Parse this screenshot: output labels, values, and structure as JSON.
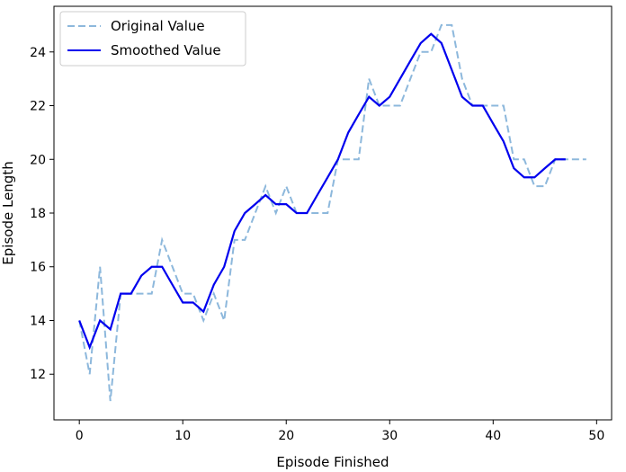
{
  "chart_data": {
    "type": "line",
    "title": "",
    "xlabel": "Episode Finished",
    "ylabel": "Episode Length",
    "xlim": [
      -2.45,
      51.45
    ],
    "ylim": [
      10.3,
      25.7
    ],
    "xticks": [
      0,
      10,
      20,
      30,
      40,
      50
    ],
    "yticks": [
      12,
      14,
      16,
      18,
      20,
      22,
      24
    ],
    "grid": false,
    "legend_position": "top-left",
    "series": [
      {
        "name": "Original Value",
        "style": "dashed",
        "color": "#8db8dc",
        "x": [
          0,
          1,
          2,
          3,
          4,
          5,
          6,
          7,
          8,
          9,
          10,
          11,
          12,
          13,
          14,
          15,
          16,
          17,
          18,
          19,
          20,
          21,
          22,
          23,
          24,
          25,
          26,
          27,
          28,
          29,
          30,
          31,
          32,
          33,
          34,
          35,
          36,
          37,
          38,
          39,
          40,
          41,
          42,
          43,
          44,
          45,
          46,
          47,
          48,
          49
        ],
        "y": [
          14,
          12,
          16,
          11,
          15,
          15,
          15,
          15,
          17,
          16,
          15,
          15,
          14,
          15,
          14,
          17,
          17,
          18,
          19,
          18,
          19,
          18,
          18,
          18,
          18,
          20,
          20,
          20,
          23,
          22,
          22,
          22,
          23,
          24,
          24,
          25,
          25,
          23,
          22,
          22,
          22,
          22,
          20,
          20,
          19,
          19,
          20,
          20,
          20,
          20
        ]
      },
      {
        "name": "Smoothed Value",
        "style": "solid",
        "color": "#0000ee",
        "x": [
          0,
          1,
          2,
          3,
          4,
          5,
          6,
          7,
          8,
          9,
          10,
          11,
          12,
          13,
          14,
          15,
          16,
          17,
          18,
          19,
          20,
          21,
          22,
          23,
          24,
          25,
          26,
          27,
          28,
          29,
          30,
          31,
          32,
          33,
          34,
          35,
          36,
          37,
          38,
          39,
          40,
          41,
          42,
          43,
          44,
          45,
          46,
          47
        ],
        "y": [
          14,
          13,
          14,
          13.67,
          15,
          15,
          15.67,
          16,
          16,
          15.33,
          14.67,
          14.67,
          14.33,
          15.33,
          16,
          17.33,
          18,
          18.33,
          18.67,
          18.33,
          18.33,
          18,
          18,
          18.67,
          19.33,
          20,
          21,
          21.67,
          22.33,
          22,
          22.33,
          23,
          23.67,
          24.33,
          24.67,
          24.33,
          23.33,
          22.33,
          22,
          22,
          21.33,
          20.67,
          19.67,
          19.33,
          19.33,
          19.67,
          20,
          20
        ]
      }
    ]
  }
}
